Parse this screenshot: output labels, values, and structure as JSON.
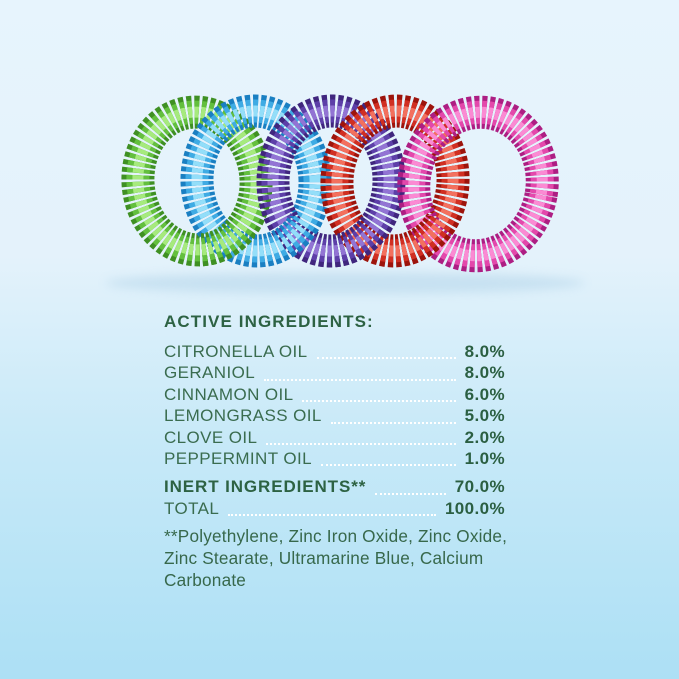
{
  "product_image": {
    "description": "Five interlinked coil repellent bracelets",
    "bracelets": [
      {
        "name": "green-bracelet",
        "shade": "#3f9023",
        "base": "#63bf3e",
        "highlight": "#a6ea7d"
      },
      {
        "name": "blue-bracelet",
        "shade": "#1a7fc2",
        "base": "#3fabe4",
        "highlight": "#93def9"
      },
      {
        "name": "purple-bracelet",
        "shade": "#40267e",
        "base": "#5d3fa8",
        "highlight": "#9274d4"
      },
      {
        "name": "red-bracelet",
        "shade": "#9d140c",
        "base": "#d02f22",
        "highlight": "#f3705e"
      },
      {
        "name": "pink-bracelet",
        "shade": "#ad1e83",
        "base": "#e348ab",
        "highlight": "#fb8ad3"
      }
    ]
  },
  "ingredients": {
    "heading": "ACTIVE INGREDIENTS:",
    "active": [
      {
        "label": "CITRONELLA OIL",
        "value": "8.0%"
      },
      {
        "label": "GERANIOL",
        "value": "8.0%"
      },
      {
        "label": "CINNAMON OIL",
        "value": "6.0%"
      },
      {
        "label": "LEMONGRASS OIL",
        "value": "5.0%"
      },
      {
        "label": "CLOVE OIL",
        "value": "2.0%"
      },
      {
        "label": "PEPPERMINT OIL",
        "value": "1.0%"
      }
    ],
    "summary": [
      {
        "label": "INERT INGREDIENTS**",
        "value": "70.0%",
        "bold": true
      },
      {
        "label": "TOTAL",
        "value": "100.0%",
        "bold": false
      }
    ],
    "footnote": "**Polyethylene, Zinc Iron Oxide, Zinc Oxide, Zinc Stearate, Ultramarine Blue, Calcium Carbonate"
  },
  "colors": {
    "background_top": "#e7f4fd",
    "background_bottom": "#ade0f5",
    "text_green": "#37684b",
    "heading_green": "#2d6243",
    "value_green": "#2b5f42",
    "leader_dots": "#ffffff"
  }
}
